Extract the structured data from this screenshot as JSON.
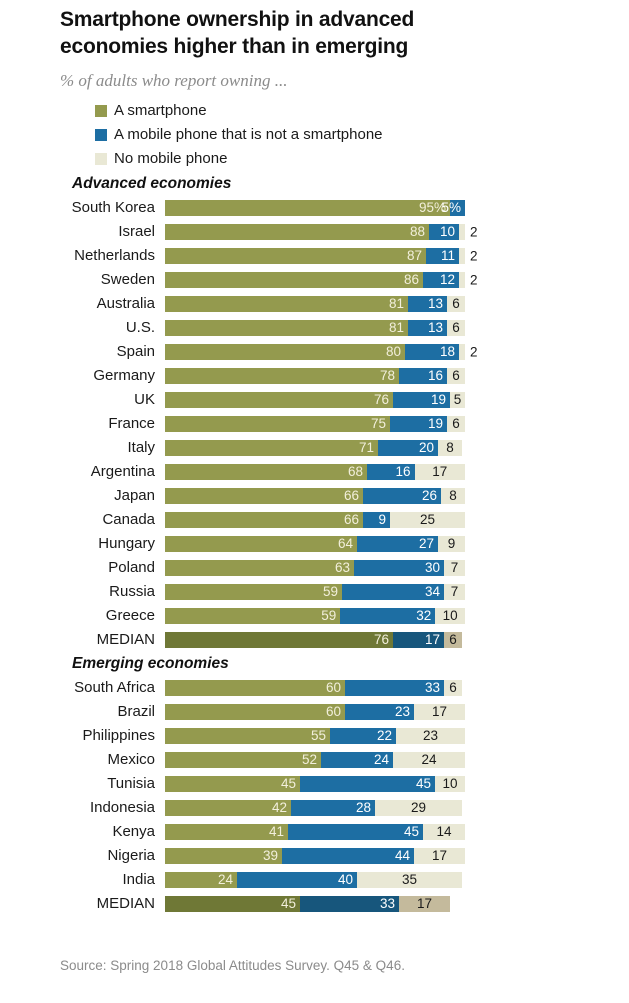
{
  "title": "Smartphone ownership in advanced economies higher than in emerging",
  "subtitle": "% of adults who report owning ...",
  "legend": [
    {
      "label": "A smartphone",
      "color_key": "smartphone"
    },
    {
      "label": "A mobile phone that is not a smartphone",
      "color_key": "mobile"
    },
    {
      "label": "No mobile phone",
      "color_key": "none"
    }
  ],
  "colors": {
    "smartphone": "#949a4e",
    "mobile": "#1d6ea3",
    "none": "#e9e8d5",
    "median_smartphone": "#6f7836",
    "median_mobile": "#17567c",
    "median_none": "#c4ba9c",
    "label_on_smartphone": "#f2efdb",
    "label_on_mobile": "#ffffff",
    "label_on_none": "#1a1a1a"
  },
  "source": "Source: Spring 2018 Global Attitudes Survey. Q45 & Q46.",
  "chart_data": {
    "type": "bar",
    "orientation": "horizontal-stacked",
    "xlim": [
      0,
      100
    ],
    "series_names": [
      "A smartphone",
      "A mobile phone that is not a smartphone",
      "No mobile phone"
    ],
    "sections": [
      {
        "header": "Advanced economies",
        "rows": [
          {
            "name": "South Korea",
            "values": [
              95,
              5,
              0
            ],
            "labels": [
              "95%",
              "5%",
              ""
            ],
            "none_label": "none",
            "median": false
          },
          {
            "name": "Israel",
            "values": [
              88,
              10,
              2
            ],
            "labels": [
              "88",
              "10",
              "2"
            ],
            "none_label": "outside",
            "median": false
          },
          {
            "name": "Netherlands",
            "values": [
              87,
              11,
              2
            ],
            "labels": [
              "87",
              "11",
              "2"
            ],
            "none_label": "outside",
            "median": false
          },
          {
            "name": "Sweden",
            "values": [
              86,
              12,
              2
            ],
            "labels": [
              "86",
              "12",
              "2"
            ],
            "none_label": "outside",
            "median": false
          },
          {
            "name": "Australia",
            "values": [
              81,
              13,
              6
            ],
            "labels": [
              "81",
              "13",
              "6"
            ],
            "none_label": "inside",
            "median": false
          },
          {
            "name": "U.S.",
            "values": [
              81,
              13,
              6
            ],
            "labels": [
              "81",
              "13",
              "6"
            ],
            "none_label": "inside",
            "median": false
          },
          {
            "name": "Spain",
            "values": [
              80,
              18,
              2
            ],
            "labels": [
              "80",
              "18",
              "2"
            ],
            "none_label": "outside",
            "median": false
          },
          {
            "name": "Germany",
            "values": [
              78,
              16,
              6
            ],
            "labels": [
              "78",
              "16",
              "6"
            ],
            "none_label": "inside",
            "median": false
          },
          {
            "name": "UK",
            "values": [
              76,
              19,
              5
            ],
            "labels": [
              "76",
              "19",
              "5"
            ],
            "none_label": "inside",
            "median": false
          },
          {
            "name": "France",
            "values": [
              75,
              19,
              6
            ],
            "labels": [
              "75",
              "19",
              "6"
            ],
            "none_label": "inside",
            "median": false
          },
          {
            "name": "Italy",
            "values": [
              71,
              20,
              8
            ],
            "labels": [
              "71",
              "20",
              "8"
            ],
            "none_label": "inside",
            "median": false
          },
          {
            "name": "Argentina",
            "values": [
              68,
              16,
              17
            ],
            "labels": [
              "68",
              "16",
              "17"
            ],
            "none_label": "inside",
            "median": false
          },
          {
            "name": "Japan",
            "values": [
              66,
              26,
              8
            ],
            "labels": [
              "66",
              "26",
              "8"
            ],
            "none_label": "inside",
            "median": false
          },
          {
            "name": "Canada",
            "values": [
              66,
              9,
              25
            ],
            "labels": [
              "66",
              "9",
              "25"
            ],
            "none_label": "inside",
            "median": false
          },
          {
            "name": "Hungary",
            "values": [
              64,
              27,
              9
            ],
            "labels": [
              "64",
              "27",
              "9"
            ],
            "none_label": "inside",
            "median": false
          },
          {
            "name": "Poland",
            "values": [
              63,
              30,
              7
            ],
            "labels": [
              "63",
              "30",
              "7"
            ],
            "none_label": "inside",
            "median": false
          },
          {
            "name": "Russia",
            "values": [
              59,
              34,
              7
            ],
            "labels": [
              "59",
              "34",
              "7"
            ],
            "none_label": "inside",
            "median": false
          },
          {
            "name": "Greece",
            "values": [
              59,
              32,
              10
            ],
            "labels": [
              "59",
              "32",
              "10"
            ],
            "none_label": "inside",
            "median": false
          },
          {
            "name": "MEDIAN",
            "values": [
              76,
              17,
              6
            ],
            "labels": [
              "76",
              "17",
              "6"
            ],
            "none_label": "inside",
            "median": true
          }
        ]
      },
      {
        "header": "Emerging economies",
        "rows": [
          {
            "name": "South Africa",
            "values": [
              60,
              33,
              6
            ],
            "labels": [
              "60",
              "33",
              "6"
            ],
            "none_label": "inside",
            "median": false
          },
          {
            "name": "Brazil",
            "values": [
              60,
              23,
              17
            ],
            "labels": [
              "60",
              "23",
              "17"
            ],
            "none_label": "inside",
            "median": false
          },
          {
            "name": "Philippines",
            "values": [
              55,
              22,
              23
            ],
            "labels": [
              "55",
              "22",
              "23"
            ],
            "none_label": "inside",
            "median": false
          },
          {
            "name": "Mexico",
            "values": [
              52,
              24,
              24
            ],
            "labels": [
              "52",
              "24",
              "24"
            ],
            "none_label": "inside",
            "median": false
          },
          {
            "name": "Tunisia",
            "values": [
              45,
              45,
              10
            ],
            "labels": [
              "45",
              "45",
              "10"
            ],
            "none_label": "inside",
            "median": false
          },
          {
            "name": "Indonesia",
            "values": [
              42,
              28,
              29
            ],
            "labels": [
              "42",
              "28",
              "29"
            ],
            "none_label": "inside",
            "median": false
          },
          {
            "name": "Kenya",
            "values": [
              41,
              45,
              14
            ],
            "labels": [
              "41",
              "45",
              "14"
            ],
            "none_label": "inside",
            "median": false
          },
          {
            "name": "Nigeria",
            "values": [
              39,
              44,
              17
            ],
            "labels": [
              "39",
              "44",
              "17"
            ],
            "none_label": "inside",
            "median": false
          },
          {
            "name": "India",
            "values": [
              24,
              40,
              35
            ],
            "labels": [
              "24",
              "40",
              "35"
            ],
            "none_label": "inside",
            "median": false
          },
          {
            "name": "MEDIAN",
            "values": [
              45,
              33,
              17
            ],
            "labels": [
              "45",
              "33",
              "17"
            ],
            "none_label": "inside",
            "median": true
          }
        ]
      }
    ]
  }
}
